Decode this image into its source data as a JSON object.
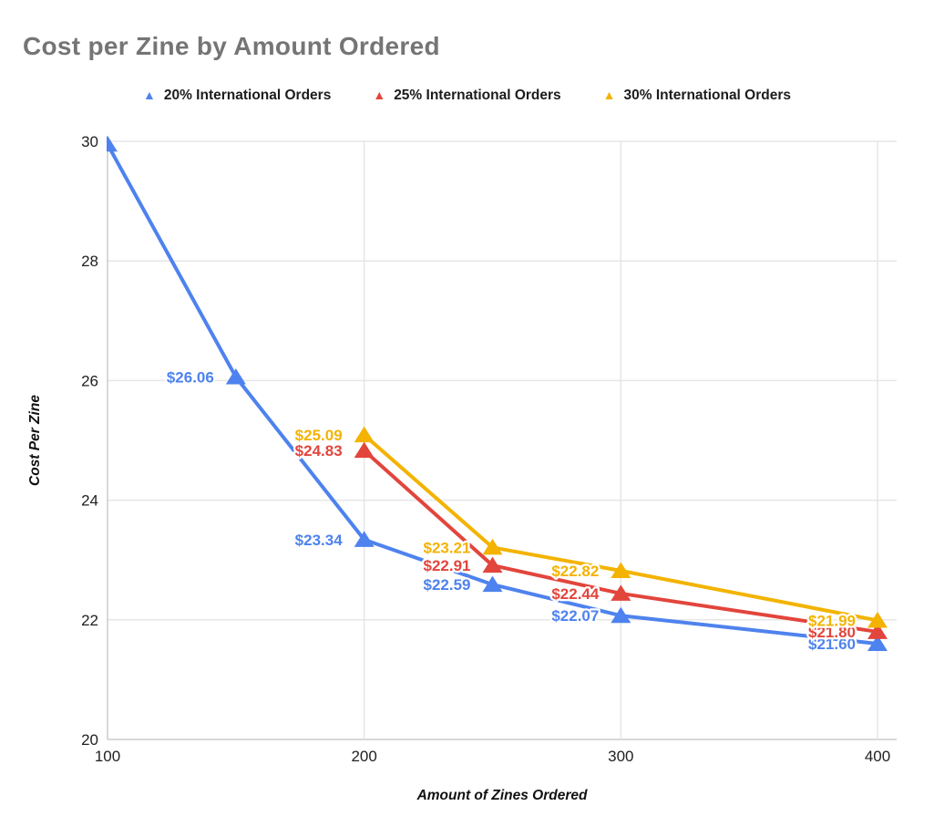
{
  "title": {
    "text": "Cost per Zine by Amount Ordered",
    "color": "#757575"
  },
  "legend": {
    "marker_glyph": "▲",
    "text_color": "#1c1c1c"
  },
  "style": {
    "grid_color": "#e6e6e6",
    "axis_line_color": "#cccccc",
    "tick_label_color": "#212121",
    "axis_title_color": "#111111",
    "label_halo_color": "#ffffff"
  },
  "chart_data": {
    "type": "line",
    "title": "Cost per Zine by Amount Ordered",
    "xlabel": "Amount of Zines Ordered",
    "ylabel": "Cost Per Zine",
    "xlim": [
      100,
      400
    ],
    "ylim": [
      20,
      30
    ],
    "x_ticks": [
      100,
      200,
      300,
      400
    ],
    "y_ticks": [
      20,
      22,
      24,
      26,
      28,
      30
    ],
    "grid": true,
    "legend_position": "top",
    "marker": "triangle-up",
    "series": [
      {
        "name": "20% International Orders",
        "color": "#4e82ee",
        "points": [
          {
            "x": 100,
            "y": 29.95,
            "label": null
          },
          {
            "x": 150,
            "y": 26.06,
            "label": "$26.06"
          },
          {
            "x": 200,
            "y": 23.34,
            "label": "$23.34"
          },
          {
            "x": 250,
            "y": 22.59,
            "label": "$22.59"
          },
          {
            "x": 300,
            "y": 22.07,
            "label": "$22.07"
          },
          {
            "x": 400,
            "y": 21.6,
            "label": "$21.60"
          }
        ]
      },
      {
        "name": "25% International Orders",
        "color": "#e2453c",
        "points": [
          {
            "x": 200,
            "y": 24.83,
            "label": "$24.83"
          },
          {
            "x": 250,
            "y": 22.91,
            "label": "$22.91"
          },
          {
            "x": 300,
            "y": 22.44,
            "label": "$22.44"
          },
          {
            "x": 400,
            "y": 21.8,
            "label": "$21.80"
          }
        ]
      },
      {
        "name": "30% International Orders",
        "color": "#f3b300",
        "points": [
          {
            "x": 200,
            "y": 25.09,
            "label": "$25.09"
          },
          {
            "x": 250,
            "y": 23.21,
            "label": "$23.21"
          },
          {
            "x": 300,
            "y": 22.82,
            "label": "$22.82"
          },
          {
            "x": 400,
            "y": 21.99,
            "label": "$21.99"
          }
        ]
      }
    ]
  }
}
